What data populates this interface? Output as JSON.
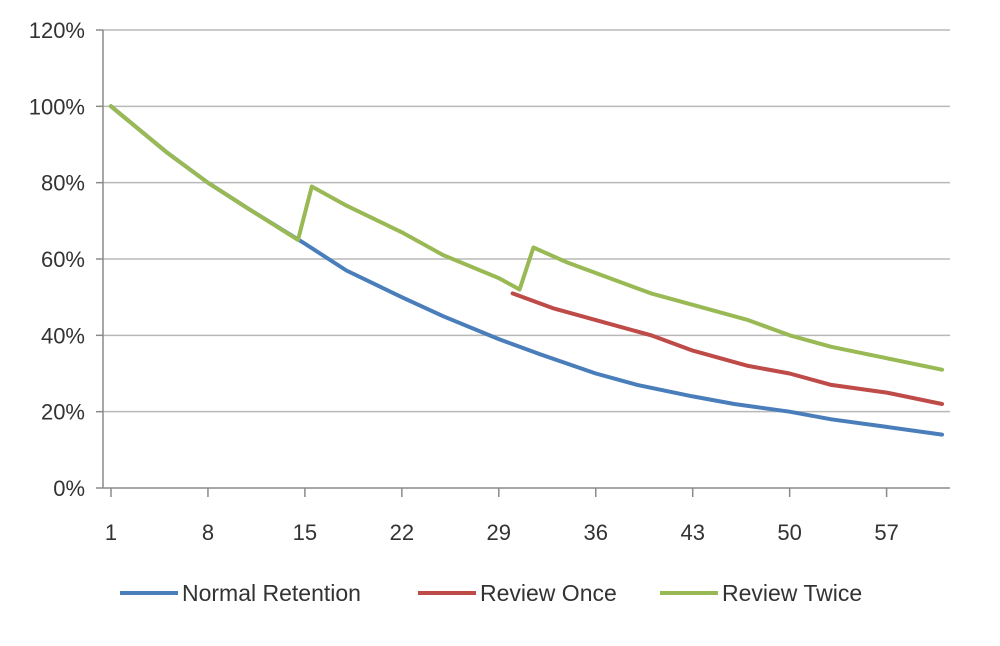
{
  "chart_data": {
    "type": "line",
    "title": "",
    "xlabel": "",
    "ylabel": "",
    "xlim": [
      1,
      61
    ],
    "ylim": [
      0,
      120
    ],
    "y_ticks": [
      0,
      20,
      40,
      60,
      80,
      100,
      120
    ],
    "y_tick_labels": [
      "0%",
      "20%",
      "40%",
      "60%",
      "80%",
      "100%",
      "120%"
    ],
    "x_ticks": [
      1,
      8,
      15,
      22,
      29,
      36,
      43,
      50,
      57
    ],
    "x_tick_labels": [
      "1",
      "8",
      "15",
      "22",
      "29",
      "36",
      "43",
      "50",
      "57"
    ],
    "grid": "horizontal",
    "legend_position": "bottom",
    "series": [
      {
        "name": "Normal Retention",
        "color": "#4a7ebb",
        "x": [
          1,
          5,
          8,
          11,
          15,
          18,
          22,
          25,
          29,
          32,
          36,
          39,
          43,
          46,
          50,
          53,
          57,
          61
        ],
        "values": [
          100,
          88,
          80,
          73,
          64,
          57,
          50,
          45,
          39,
          35,
          30,
          27,
          24,
          22,
          20,
          18,
          16,
          14
        ]
      },
      {
        "name": "Review Once",
        "color": "#be4b48",
        "x": [
          30,
          33,
          36,
          40,
          43,
          47,
          50,
          53,
          57,
          61
        ],
        "values": [
          51,
          47,
          44,
          40,
          36,
          32,
          30,
          27,
          25,
          22
        ]
      },
      {
        "name": "Review Twice",
        "color": "#98b954",
        "x": [
          1,
          5,
          8,
          11,
          14.5,
          15.5,
          18,
          22,
          25,
          29,
          30.5,
          31.5,
          34,
          37,
          40,
          43,
          47,
          50,
          53,
          57,
          61
        ],
        "values": [
          100,
          88,
          80,
          73,
          65,
          79,
          74,
          67,
          61,
          55,
          52,
          63,
          59,
          55,
          51,
          48,
          44,
          40,
          37,
          34,
          31
        ]
      }
    ]
  }
}
